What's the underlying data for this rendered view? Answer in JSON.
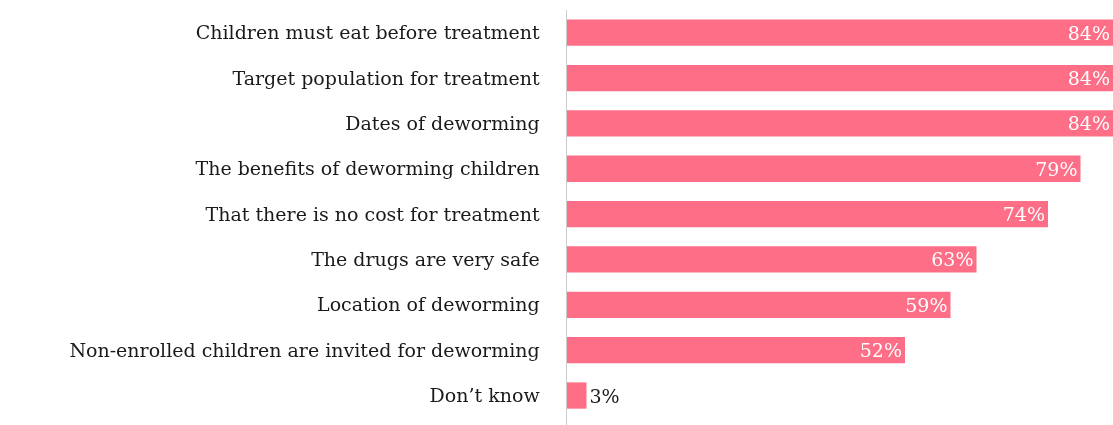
{
  "chart_data": {
    "type": "bar",
    "orientation": "horizontal",
    "categories": [
      "Children must eat before treatment",
      "Target population for treatment",
      "Dates of deworming",
      "The benefits of deworming children",
      "That there is no cost for treatment",
      "The drugs are very safe",
      "Location of deworming",
      "Non-enrolled children are invited for deworming",
      "Don’t know"
    ],
    "values": [
      84,
      84,
      84,
      79,
      74,
      63,
      59,
      52,
      3
    ],
    "value_labels": [
      "84%",
      "84%",
      "84%",
      "79%",
      "74%",
      "63%",
      "59%",
      "52%",
      "3%"
    ],
    "color": "#fe6f87",
    "xlim": [
      0,
      84
    ],
    "tick_labels": "y"
  }
}
